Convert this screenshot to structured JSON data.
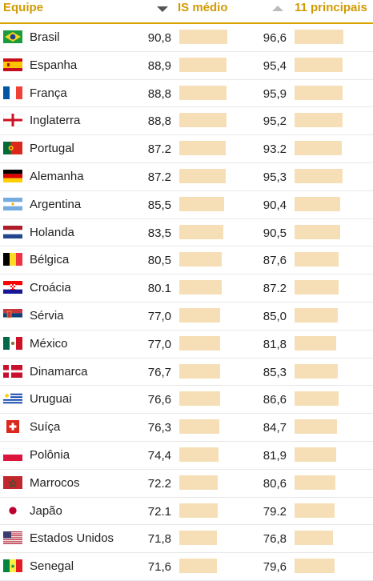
{
  "header": {
    "team": "Equipe",
    "is_medio": "IS médio",
    "top11": "11 principais"
  },
  "colors": {
    "accent": "#d29a00",
    "bar": "#f6dfb6"
  },
  "rows": [
    {
      "team": "Brasil",
      "flag": "brazil-flag",
      "is": "90,8",
      "top": "96,6"
    },
    {
      "team": "Espanha",
      "flag": "spain-flag",
      "is": "88,9",
      "top": "95,4"
    },
    {
      "team": "França",
      "flag": "france-flag",
      "is": "88,8",
      "top": "95,9"
    },
    {
      "team": "Inglaterra",
      "flag": "england-flag",
      "is": "88,8",
      "top": "95,2"
    },
    {
      "team": "Portugal",
      "flag": "portugal-flag",
      "is": "87.2",
      "top": "93.2"
    },
    {
      "team": "Alemanha",
      "flag": "germany-flag",
      "is": "87.2",
      "top": "95,3"
    },
    {
      "team": "Argentina",
      "flag": "argentina-flag",
      "is": "85,5",
      "top": "90,4"
    },
    {
      "team": "Holanda",
      "flag": "netherlands-flag",
      "is": "83,5",
      "top": "90,5"
    },
    {
      "team": "Bélgica",
      "flag": "belgium-flag",
      "is": "80,5",
      "top": "87,6"
    },
    {
      "team": "Croácia",
      "flag": "croatia-flag",
      "is": "80.1",
      "top": "87.2"
    },
    {
      "team": "Sérvia",
      "flag": "serbia-flag",
      "is": "77,0",
      "top": "85,0"
    },
    {
      "team": "México",
      "flag": "mexico-flag",
      "is": "77,0",
      "top": "81,8"
    },
    {
      "team": "Dinamarca",
      "flag": "denmark-flag",
      "is": "76,7",
      "top": "85,3"
    },
    {
      "team": "Uruguai",
      "flag": "uruguay-flag",
      "is": "76,6",
      "top": "86,6"
    },
    {
      "team": "Suíça",
      "flag": "switzerland-flag",
      "is": "76,3",
      "top": "84,7"
    },
    {
      "team": "Polônia",
      "flag": "poland-flag",
      "is": "74,4",
      "top": "81,9"
    },
    {
      "team": "Marrocos",
      "flag": "morocco-flag",
      "is": "72.2",
      "top": "80,6"
    },
    {
      "team": "Japão",
      "flag": "japan-flag",
      "is": "72.1",
      "top": "79.2"
    },
    {
      "team": "Estados Unidos",
      "flag": "usa-flag",
      "is": "71,8",
      "top": "76,8"
    },
    {
      "team": "Senegal",
      "flag": "senegal-flag",
      "is": "71,6",
      "top": "79,6"
    }
  ]
}
